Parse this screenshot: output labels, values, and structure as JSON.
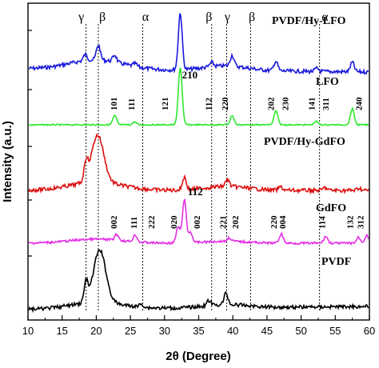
{
  "chart_data": {
    "type": "line",
    "xlabel": "2θ (Degree)",
    "ylabel": "Intensity (a.u.)",
    "xlim": [
      10,
      60
    ],
    "x_ticks": [
      "10",
      "15",
      "20",
      "25",
      "30",
      "35",
      "40",
      "45",
      "50",
      "55",
      "60"
    ],
    "y_ticks_shown": false,
    "grid": false,
    "colors": {
      "PVDF/Hy-LFO": "#1a1adc",
      "LFO": "#2ee82e",
      "PVDF/Hy-GdFO": "#dd1111",
      "GdFO": "#e52ee5",
      "PVDF": "#000000"
    },
    "series": [
      {
        "name": "PVDF/Hy-LFO",
        "peaks": [
          {
            "x": 18.4,
            "h": 0.1
          },
          {
            "x": 20.3,
            "h": 0.25
          },
          {
            "x": 22.7,
            "h": 0.12
          },
          {
            "x": 25.7,
            "h": 0.05
          },
          {
            "x": 32.3,
            "h": 0.95
          },
          {
            "x": 36.9,
            "h": 0.07
          },
          {
            "x": 39.9,
            "h": 0.18
          },
          {
            "x": 46.3,
            "h": 0.16
          },
          {
            "x": 52.3,
            "h": 0.05
          },
          {
            "x": 57.5,
            "h": 0.16
          }
        ]
      },
      {
        "name": "LFO",
        "peaks": [
          {
            "x": 22.7,
            "h": 0.16
          },
          {
            "x": 25.6,
            "h": 0.05
          },
          {
            "x": 32.3,
            "h": 1.0
          },
          {
            "x": 39.9,
            "h": 0.16
          },
          {
            "x": 46.3,
            "h": 0.24
          },
          {
            "x": 52.2,
            "h": 0.06
          },
          {
            "x": 57.5,
            "h": 0.28
          }
        ]
      },
      {
        "name": "PVDF/Hy-GdFO",
        "peaks": [
          {
            "x": 18.5,
            "h": 0.3
          },
          {
            "x": 20.2,
            "h": 0.82
          },
          {
            "x": 32.9,
            "h": 0.22
          },
          {
            "x": 39.2,
            "h": 0.12
          },
          {
            "x": 47.0,
            "h": 0.06
          },
          {
            "x": 53.5,
            "h": 0.05
          },
          {
            "x": 58.5,
            "h": 0.04
          }
        ]
      },
      {
        "name": "GdFO",
        "peaks": [
          {
            "x": 23.0,
            "h": 0.1
          },
          {
            "x": 25.7,
            "h": 0.12
          },
          {
            "x": 32.0,
            "h": 0.28
          },
          {
            "x": 32.9,
            "h": 0.75
          },
          {
            "x": 33.8,
            "h": 0.18
          },
          {
            "x": 39.5,
            "h": 0.06
          },
          {
            "x": 47.1,
            "h": 0.16
          },
          {
            "x": 53.6,
            "h": 0.12
          },
          {
            "x": 58.4,
            "h": 0.1
          },
          {
            "x": 59.6,
            "h": 0.14
          }
        ]
      },
      {
        "name": "PVDF",
        "peaks": [
          {
            "x": 18.5,
            "h": 0.3
          },
          {
            "x": 20.5,
            "h": 0.82
          },
          {
            "x": 26.6,
            "h": 0.05
          },
          {
            "x": 36.5,
            "h": 0.08
          },
          {
            "x": 39.0,
            "h": 0.18
          }
        ]
      }
    ],
    "reference_lines_x": [
      18.5,
      20.3,
      26.8,
      36.9,
      39.1,
      42.6,
      52.7
    ],
    "phase_labels": [
      {
        "text": "γ",
        "x": 17.8
      },
      {
        "text": "β",
        "x": 20.9
      },
      {
        "text": "α",
        "x": 27.2
      },
      {
        "text": "β",
        "x": 36.5
      },
      {
        "text": "γ",
        "x": 39.2
      },
      {
        "text": "β",
        "x": 42.8
      },
      {
        "text": "α",
        "x": 53.5
      }
    ],
    "peak_labels": [
      {
        "text": "101",
        "x": 23.0,
        "series": "LFO"
      },
      {
        "text": "111",
        "x": 25.6,
        "series": "LFO"
      },
      {
        "text": "121",
        "x": 30.5,
        "series": "LFO"
      },
      {
        "text": "210",
        "x": 33.7,
        "series": "LFO"
      },
      {
        "text": "112",
        "x": 36.9,
        "series": "LFO"
      },
      {
        "text": "220",
        "x": 39.3,
        "series": "LFO"
      },
      {
        "text": "202",
        "x": 46.0,
        "series": "LFO"
      },
      {
        "text": "230",
        "x": 48.1,
        "series": "LFO"
      },
      {
        "text": "141",
        "x": 52.0,
        "series": "LFO"
      },
      {
        "text": "311",
        "x": 54.0,
        "series": "LFO"
      },
      {
        "text": "240",
        "x": 58.9,
        "series": "LFO"
      },
      {
        "text": "002",
        "x": 23.0,
        "series": "GdFO"
      },
      {
        "text": "111",
        "x": 25.9,
        "series": "GdFO"
      },
      {
        "text": "222",
        "x": 28.5,
        "series": "GdFO"
      },
      {
        "text": "020",
        "x": 31.8,
        "series": "GdFO"
      },
      {
        "text": "112",
        "x": 34.5,
        "series": "GdFO"
      },
      {
        "text": "002",
        "x": 35.2,
        "series": "GdFO"
      },
      {
        "text": "221",
        "x": 39.0,
        "series": "GdFO"
      },
      {
        "text": "202",
        "x": 40.8,
        "series": "GdFO"
      },
      {
        "text": "220",
        "x": 46.4,
        "series": "GdFO"
      },
      {
        "text": "004",
        "x": 47.7,
        "series": "GdFO"
      },
      {
        "text": "114",
        "x": 53.5,
        "series": "GdFO"
      },
      {
        "text": "132",
        "x": 57.6,
        "series": "GdFO"
      },
      {
        "text": "312",
        "x": 59.1,
        "series": "GdFO"
      }
    ]
  }
}
